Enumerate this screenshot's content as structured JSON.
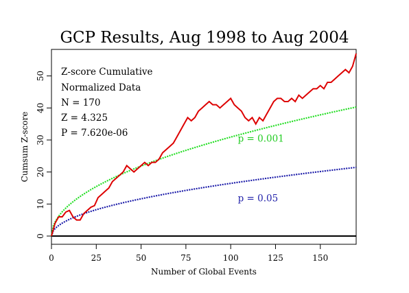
{
  "chart_data": {
    "type": "line",
    "title": "GCP Results, Aug 1998 to Aug 2004",
    "xlabel": "Number of Global Events",
    "ylabel": "Cumsum Z-score",
    "xlim": [
      0,
      170
    ],
    "ylim": [
      0,
      57
    ],
    "xticks": [
      "0",
      "25",
      "50",
      "75",
      "100",
      "125",
      "150"
    ],
    "yticks": [
      "0",
      "10",
      "20",
      "30",
      "40",
      "50"
    ],
    "info_lines": [
      "Z-score Cumulative",
      "Normalized Data",
      "N = 170",
      "Z = 4.325",
      "P = 7.620e-06"
    ],
    "annotations": [
      {
        "text": "p = 0.001",
        "x": 104,
        "y": 29.5,
        "color": "#22cc22"
      },
      {
        "text": "p = 0.05",
        "x": 104,
        "y": 10.8,
        "color": "#2222aa"
      }
    ],
    "colors": {
      "cumsum": "#dd0000",
      "p001": "#22dd22",
      "p05": "#1a1aa8",
      "zero": "#000000"
    },
    "series": [
      {
        "kind": "cumsum",
        "x": [
          0,
          2,
          4,
          6,
          8,
          10,
          12,
          14,
          16,
          18,
          20,
          22,
          24,
          26,
          28,
          30,
          32,
          34,
          36,
          38,
          40,
          42,
          44,
          46,
          48,
          50,
          52,
          54,
          56,
          58,
          60,
          62,
          64,
          66,
          68,
          70,
          72,
          74,
          76,
          78,
          80,
          82,
          84,
          86,
          88,
          90,
          92,
          94,
          96,
          98,
          100,
          102,
          104,
          106,
          108,
          110,
          112,
          114,
          116,
          118,
          120,
          122,
          124,
          126,
          128,
          130,
          132,
          134,
          136,
          138,
          140,
          142,
          144,
          146,
          148,
          150,
          152,
          154,
          156,
          158,
          160,
          162,
          164,
          166,
          168,
          170
        ],
        "y": [
          0,
          4,
          6,
          6,
          7.5,
          8,
          6,
          5,
          5,
          7,
          8,
          9,
          9.5,
          12,
          13,
          14,
          15,
          17,
          18,
          19,
          20,
          22,
          21,
          20,
          21,
          22,
          23,
          22,
          23,
          23,
          24,
          26,
          27,
          28,
          29,
          31,
          33,
          35,
          37,
          36,
          37,
          39,
          40,
          41,
          42,
          41,
          41,
          40,
          41,
          42,
          43,
          41,
          40,
          39,
          37,
          36,
          37,
          35,
          37,
          36,
          38,
          40,
          42,
          43,
          43,
          42,
          42,
          43,
          42,
          44,
          43,
          44,
          45,
          46,
          46,
          47,
          46,
          48,
          48,
          49,
          50,
          51,
          52,
          51,
          53,
          57
        ]
      },
      {
        "kind": "p001",
        "name": "p = 0.001",
        "coef": 3.09
      },
      {
        "kind": "p05",
        "name": "p = 0.05",
        "coef": 1.645
      }
    ]
  }
}
